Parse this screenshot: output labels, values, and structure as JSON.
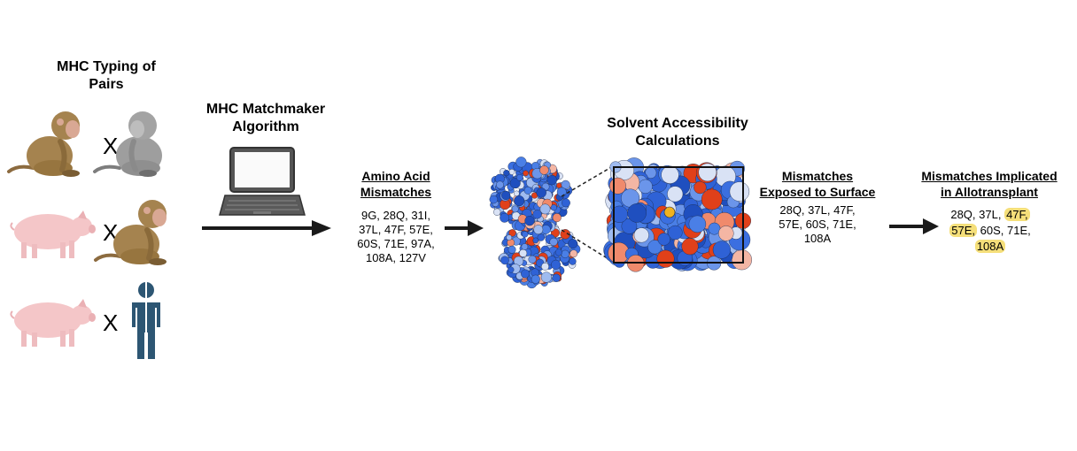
{
  "typing": {
    "title_line1": "MHC Typing of",
    "title_line2": "Pairs",
    "x_symbol": "X",
    "pairs": [
      {
        "left": "monkey-icon",
        "right": "gray-monkey-icon"
      },
      {
        "left": "pig-icon",
        "right": "monkey-icon"
      },
      {
        "left": "pig-icon",
        "right": "human-icon"
      }
    ]
  },
  "algorithm": {
    "title_line1": "MHC Matchmaker",
    "title_line2": "Algorithm",
    "icon": "laptop-icon"
  },
  "amino": {
    "title_line1": "Amino Acid",
    "title_line2": "Mismatches",
    "lines": [
      "9G, 28Q, 31I,",
      "37L, 47F, 57E,",
      "60S, 71E, 97A,",
      "108A, 127V"
    ]
  },
  "solvent": {
    "title_line1": "Solvent Accessibility",
    "title_line2": "Calculations",
    "icon": "protein-structure-icon",
    "inset_icon": "protein-zoom-icon"
  },
  "exposed": {
    "title_line1": "Mismatches",
    "title_line2": "Exposed to Surface",
    "lines": [
      "28Q,  37L, 47F,",
      "57E, 60S, 71E,",
      "108A"
    ]
  },
  "implicated": {
    "title_line1": "Mismatches Implicated",
    "title_line2": "in Allotransplant",
    "l1_a": "28Q,  37L,",
    "l1_hl": "47F,",
    "l2_hl": "57E,",
    "l2_b": "60S, 71E,",
    "l3_hl": "108A"
  },
  "colors": {
    "highlight": "#f5df7a",
    "blue": "#2f62d6",
    "red": "#e0401a",
    "arrow": "#1a1a1a"
  }
}
